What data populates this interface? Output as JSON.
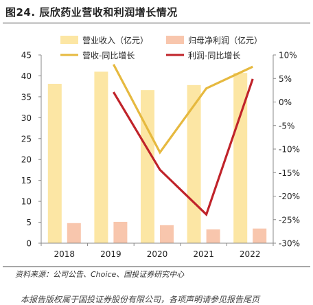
{
  "title": "图24. 辰欣药业营收和利润增长情况",
  "source": "资料来源：公司公告、Choice、国投证券研究中心",
  "disclaimer": "本报告版权属于国投证券股份有限公司，各项声明请参见报告尾页",
  "chart_data": {
    "type": "bar",
    "categories": [
      "2018",
      "2019",
      "2020",
      "2021",
      "2022"
    ],
    "y_left": {
      "ylim": [
        0,
        45
      ],
      "ticks": [
        0,
        5,
        10,
        15,
        20,
        25,
        30,
        35,
        40,
        45
      ]
    },
    "y_right": {
      "ylim": [
        -30,
        10
      ],
      "ticks": [
        -30,
        -25,
        -20,
        -15,
        -10,
        -5,
        0,
        5,
        10
      ],
      "unit": "%"
    },
    "series": [
      {
        "name": "营业收入（亿元）",
        "kind": "bar",
        "axis": "left",
        "color": "#FCE6A4",
        "values": [
          38.1,
          41.0,
          36.6,
          37.8,
          40.7
        ]
      },
      {
        "name": "归母净利润（亿元）",
        "kind": "bar",
        "axis": "left",
        "color": "#F8C6AD",
        "values": [
          4.8,
          5.1,
          4.3,
          3.3,
          3.5
        ]
      },
      {
        "name": "营收-同比增长",
        "kind": "line",
        "axis": "right",
        "color": "#E6B93F",
        "values": [
          null,
          8.0,
          -10.7,
          2.9,
          7.5
        ]
      },
      {
        "name": "利润-同比增长",
        "kind": "line",
        "axis": "right",
        "color": "#C0232A",
        "values": [
          null,
          2.1,
          -14.4,
          -23.9,
          4.9
        ]
      }
    ],
    "legend_position": "top"
  }
}
